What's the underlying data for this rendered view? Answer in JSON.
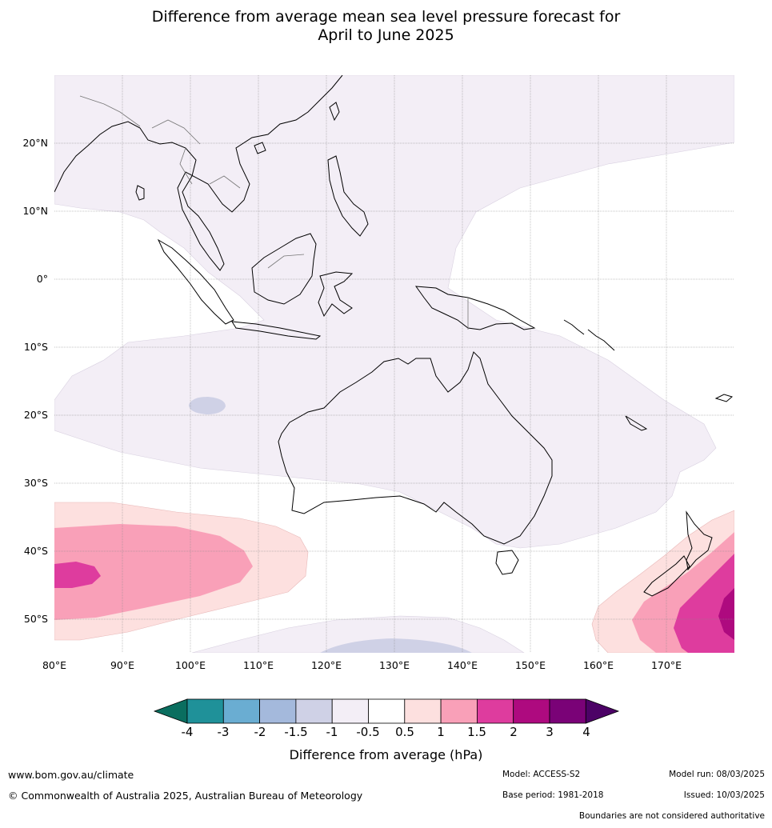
{
  "title_line1": "Difference from average mean sea level pressure forecast for",
  "title_line2": "April to June 2025",
  "lat_labels": [
    "20°N",
    "10°N",
    "0°",
    "10°S",
    "20°S",
    "30°S",
    "40°S",
    "50°S"
  ],
  "lon_labels": [
    "80°E",
    "90°E",
    "100°E",
    "110°E",
    "120°E",
    "130°E",
    "140°E",
    "150°E",
    "160°E",
    "170°E"
  ],
  "colorbar": {
    "title": "Difference from average (hPa)",
    "ticks": [
      "-4",
      "-3",
      "-2",
      "-1.5",
      "-1",
      "-0.5",
      "0.5",
      "1",
      "1.5",
      "2",
      "3",
      "4"
    ],
    "colors": {
      "lt_minus4": "#0a6e5f",
      "m4_m3": "#1f9199",
      "m3_m2": "#6aadd2",
      "m2_m15": "#a4b9dc",
      "m15_m1": "#cfd1e6",
      "m1_m05": "#f3eef6",
      "m05_05": "#ffffff",
      "p05_1": "#fde0df",
      "p1_15": "#f9a0b8",
      "p15_2": "#de3c9e",
      "p2_3": "#ae0a7f",
      "p3_4": "#7a0277",
      "gt_4": "#4c0266"
    }
  },
  "footer": {
    "website": "www.bom.gov.au/climate",
    "copyright": "© Commonwealth of Australia 2025, Australian Bureau of Meteorology",
    "model": "Model: ACCESS-S2",
    "base_period": "Base period: 1981-2018",
    "model_run": "Model run: 08/03/2025",
    "issued": "Issued: 10/03/2025",
    "boundaries": "Boundaries are not considered authoritative"
  }
}
